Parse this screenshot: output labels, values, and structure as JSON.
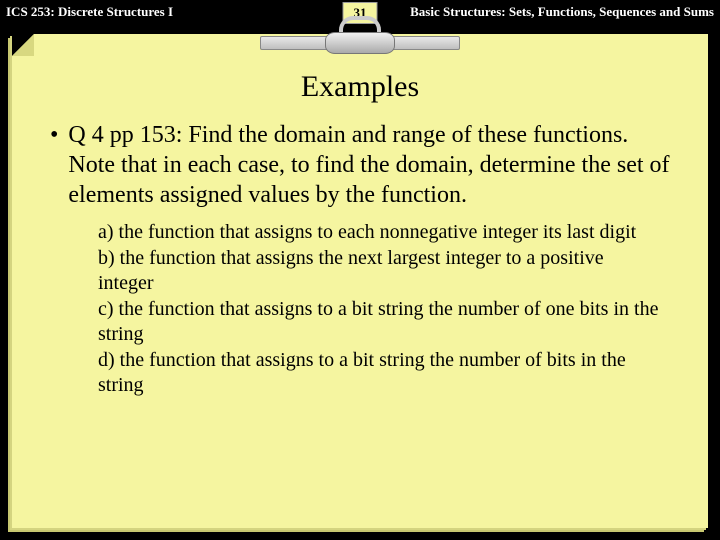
{
  "header": {
    "left": "ICS 253: Discrete Structures I",
    "page_number": "31",
    "right": "Basic Structures: Sets, Functions, Sequences and Sums"
  },
  "slide": {
    "title": "Examples",
    "bullet_marker": "•",
    "main_text": "Q 4 pp 153: Find the domain and range of these functions. Note that in each case, to find the domain, determine the set of elements assigned values by the function.",
    "items": [
      "a) the function that assigns to each nonnegative integer its last digit",
      "b) the function that assigns the next largest integer to a positive integer",
      "c) the function that assigns to a bit string the number of one bits in the string",
      "d) the function that assigns to a bit string the number of bits in the string"
    ]
  },
  "colors": {
    "background": "#000000",
    "page_bg": "#f5f5a0",
    "text": "#000000",
    "header_text": "#ffffff"
  }
}
